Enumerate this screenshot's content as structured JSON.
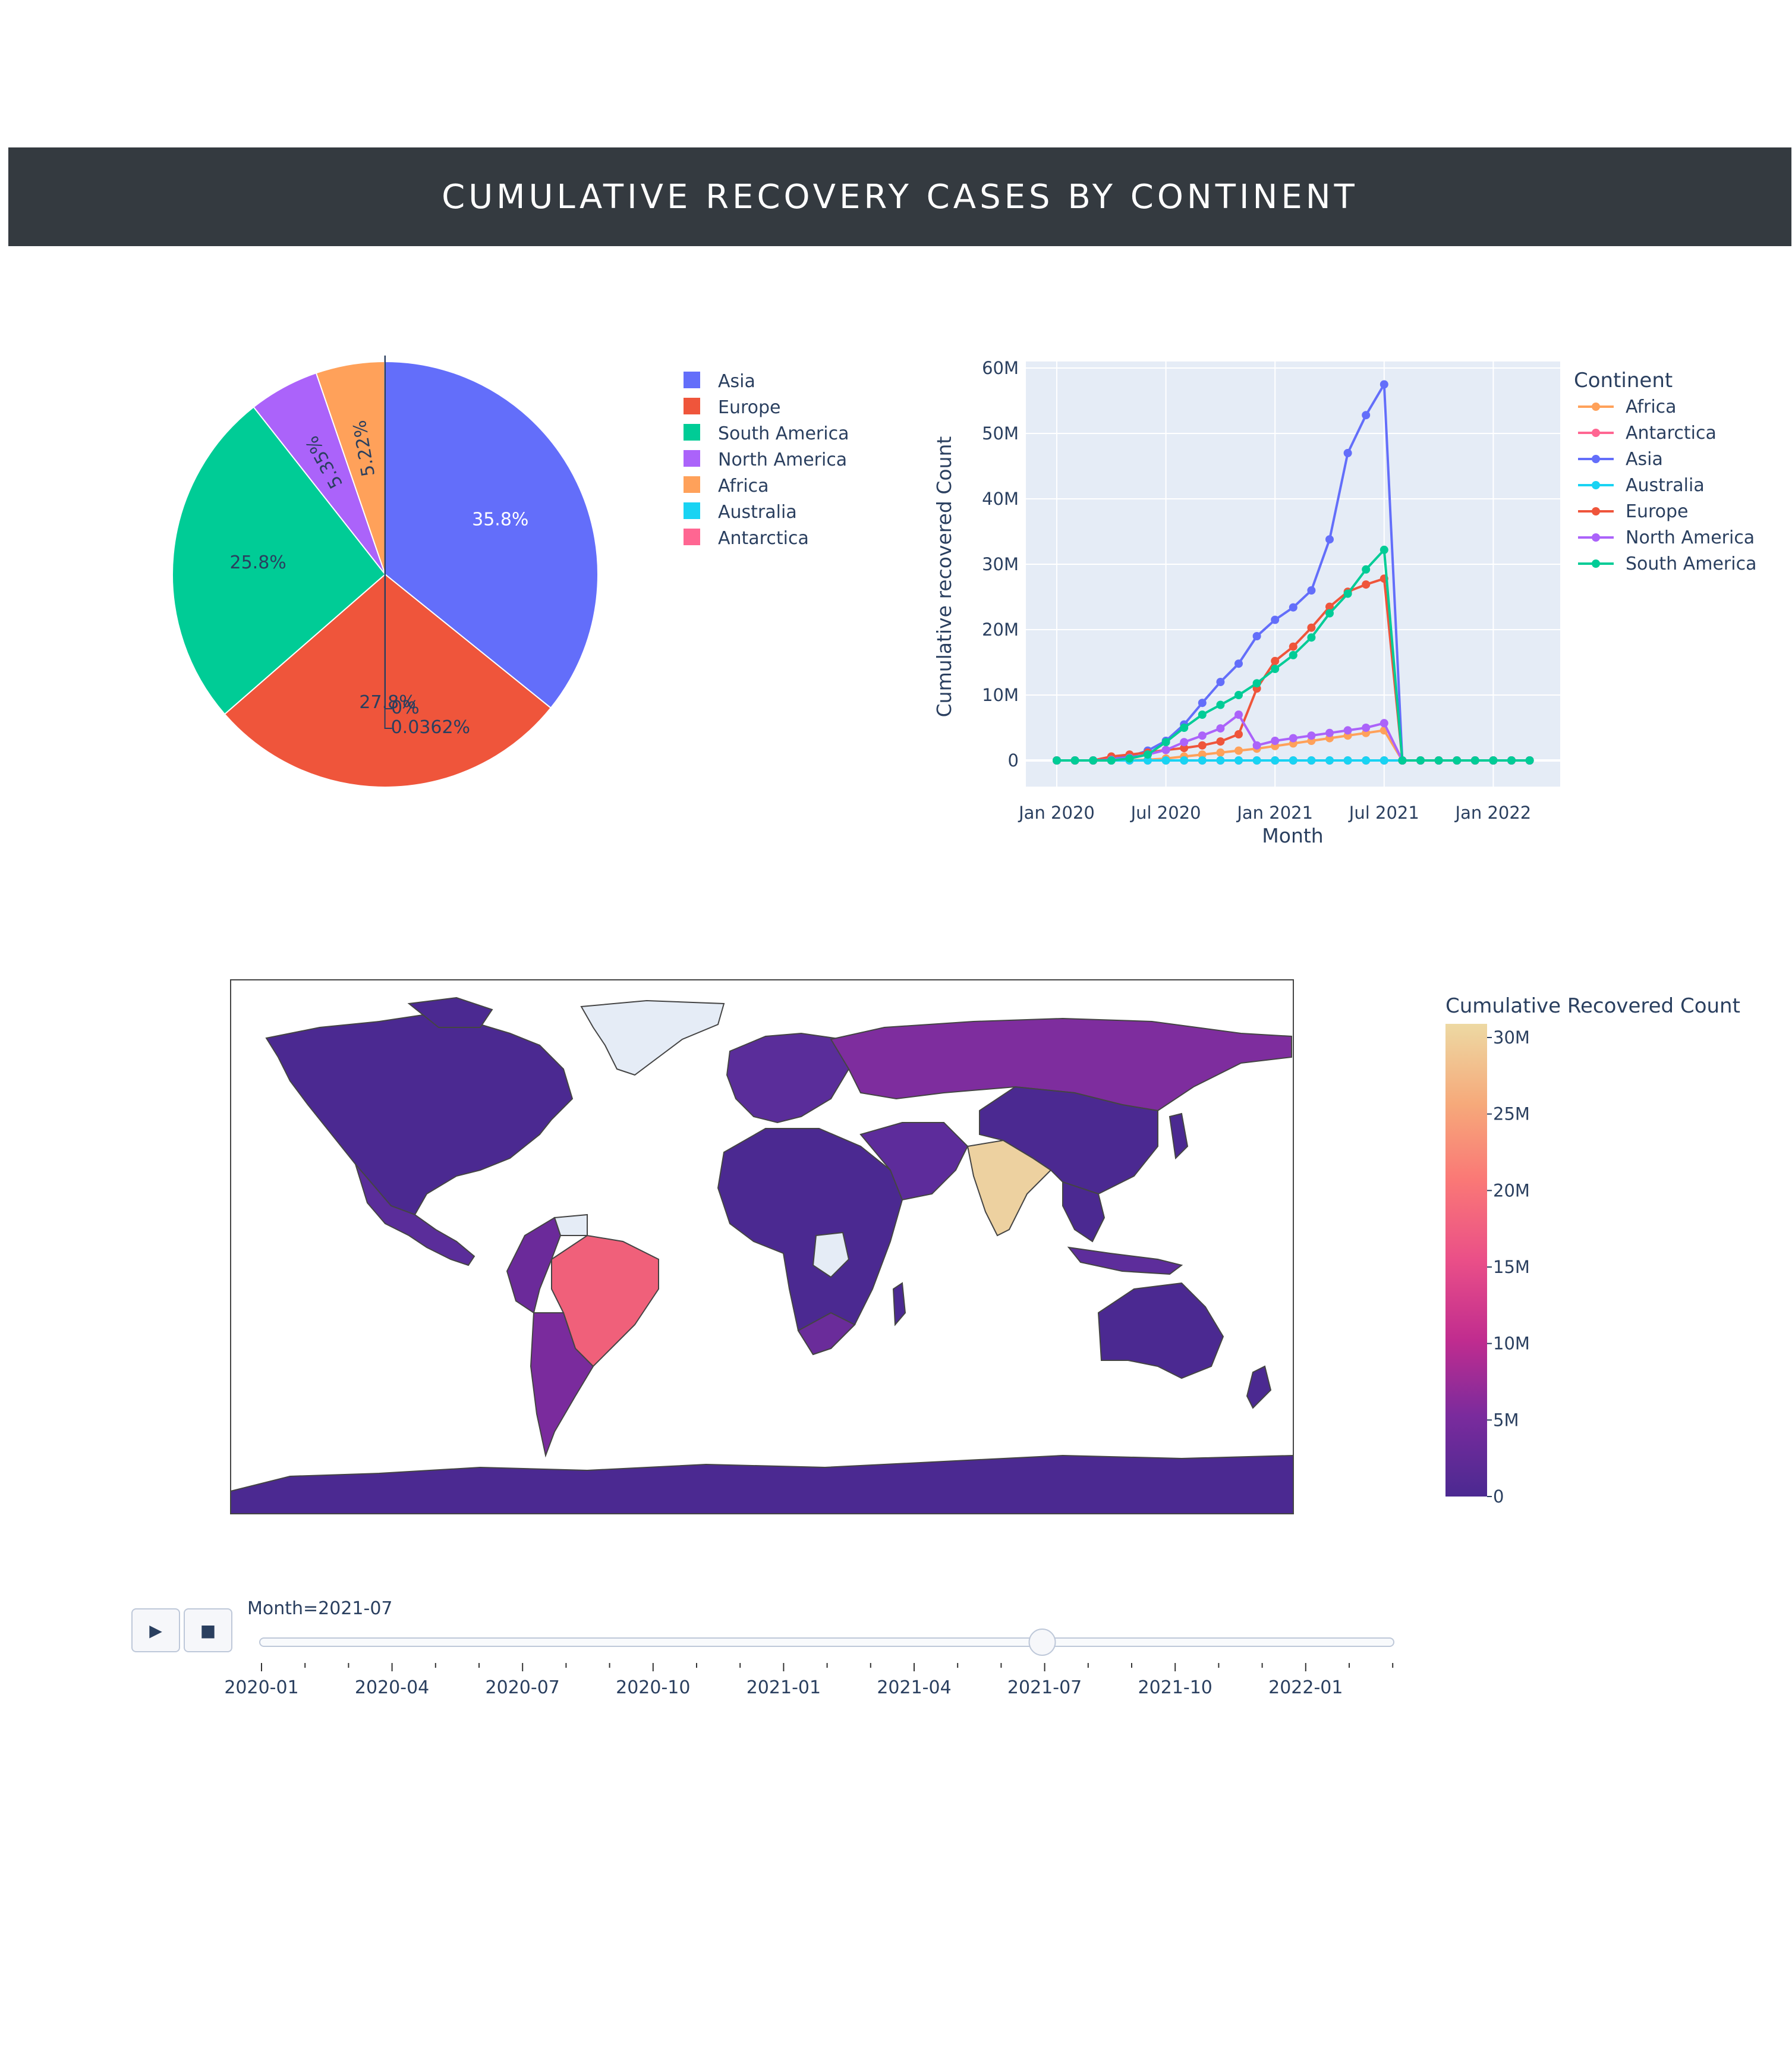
{
  "header": {
    "title": "CUMULATIVE RECOVERY CASES BY CONTINENT"
  },
  "colors": {
    "Asia": "#636efa",
    "Europe": "#ef553b",
    "South America": "#00cc96",
    "North America": "#ab63fa",
    "Africa": "#ffa15a",
    "Australia": "#19d3f3",
    "Antarctica": "#ff6692",
    "plot_bg": "#e5ecf6",
    "header_bg": "#343a40"
  },
  "chart_data": [
    {
      "type": "pie",
      "labels": [
        "Asia",
        "Europe",
        "South America",
        "North America",
        "Africa",
        "Australia",
        "Antarctica"
      ],
      "values": [
        35.8,
        27.8,
        25.8,
        5.35,
        5.22,
        0.0362,
        0
      ],
      "text_labels": [
        "35.8%",
        "27.8%",
        "25.8%",
        "5.35%",
        "5.22%",
        "0.0362%",
        "0%"
      ],
      "legend": [
        "Asia",
        "Europe",
        "South America",
        "North America",
        "Africa",
        "Australia",
        "Antarctica"
      ]
    },
    {
      "type": "line",
      "xlabel": "Month",
      "ylabel": "Cumulative recovered Count",
      "legend_title": "Continent",
      "x_ticks": [
        "Jan 2020",
        "Jul 2020",
        "Jan 2021",
        "Jul 2021",
        "Jan 2022"
      ],
      "y_ticks": [
        "0",
        "10M",
        "20M",
        "30M",
        "40M",
        "50M",
        "60M"
      ],
      "ylim": [
        -4000000,
        61000000
      ],
      "x": [
        "2020-01",
        "2020-02",
        "2020-03",
        "2020-04",
        "2020-05",
        "2020-06",
        "2020-07",
        "2020-08",
        "2020-09",
        "2020-10",
        "2020-11",
        "2020-12",
        "2021-01",
        "2021-02",
        "2021-03",
        "2021-04",
        "2021-05",
        "2021-06",
        "2021-07",
        "2021-08",
        "2021-09",
        "2021-10",
        "2021-11",
        "2021-12",
        "2022-01",
        "2022-02",
        "2022-03"
      ],
      "series": [
        {
          "name": "Africa",
          "values": [
            0,
            0,
            0,
            0,
            0.05,
            0.1,
            0.3,
            0.6,
            0.9,
            1.2,
            1.5,
            1.8,
            2.2,
            2.6,
            3.0,
            3.4,
            3.8,
            4.2,
            4.6,
            0,
            0,
            0,
            0,
            0,
            0,
            0,
            0
          ]
        },
        {
          "name": "Antarctica",
          "values": [
            0,
            0,
            0,
            0,
            0,
            0,
            0,
            0,
            0,
            0,
            0,
            0,
            0,
            0,
            0,
            0,
            0,
            0,
            0,
            0,
            0,
            0,
            0,
            0,
            0,
            0,
            0
          ]
        },
        {
          "name": "Asia",
          "values": [
            0,
            0,
            0,
            0.2,
            0.6,
            1.5,
            3.0,
            5.5,
            8.8,
            12.0,
            14.8,
            19.0,
            21.5,
            23.4,
            26.0,
            33.8,
            47.0,
            52.8,
            57.5,
            0,
            0,
            0,
            0,
            0,
            0,
            0,
            0
          ]
        },
        {
          "name": "Australia",
          "values": [
            0,
            0,
            0,
            0,
            0,
            0,
            0,
            0,
            0,
            0,
            0,
            0,
            0,
            0,
            0,
            0,
            0,
            0,
            0,
            0,
            0,
            0,
            0,
            0,
            0,
            0,
            0
          ]
        },
        {
          "name": "Europe",
          "values": [
            0,
            0,
            0,
            0.6,
            0.9,
            1.2,
            1.6,
            1.9,
            2.3,
            2.9,
            4.0,
            11.0,
            15.2,
            17.4,
            20.3,
            23.5,
            25.8,
            26.9,
            27.8,
            0,
            0,
            0,
            0,
            0,
            0,
            0,
            0
          ]
        },
        {
          "name": "North America",
          "values": [
            0,
            0,
            0,
            0.1,
            0.4,
            0.9,
            1.6,
            2.8,
            3.8,
            4.9,
            7.0,
            2.3,
            3.0,
            3.4,
            3.8,
            4.2,
            4.6,
            5.0,
            5.7,
            0,
            0,
            0,
            0,
            0,
            0,
            0,
            0
          ]
        },
        {
          "name": "South America",
          "values": [
            0,
            0,
            0,
            0,
            0.3,
            0.9,
            2.8,
            5.0,
            7.0,
            8.5,
            10.0,
            11.8,
            14.0,
            16.1,
            18.8,
            22.5,
            25.5,
            29.2,
            32.2,
            0,
            0,
            0,
            0,
            0,
            0,
            0,
            0
          ]
        }
      ],
      "series_value_unit": "millions"
    },
    {
      "type": "choropleth",
      "colorbar_title": "Cumulative Recovered Count",
      "colorbar_ticks": [
        "0",
        "5M",
        "10M",
        "15M",
        "20M",
        "25M",
        "30M"
      ]
    }
  ],
  "slider": {
    "current_label": "Month=2021-07",
    "ticks": [
      "2020-01",
      "2020-04",
      "2020-07",
      "2020-10",
      "2021-01",
      "2021-04",
      "2021-07",
      "2021-10",
      "2022-01"
    ],
    "position_fraction": 0.69
  },
  "controls": {
    "play_icon": "play-icon",
    "stop_icon": "stop-icon"
  }
}
